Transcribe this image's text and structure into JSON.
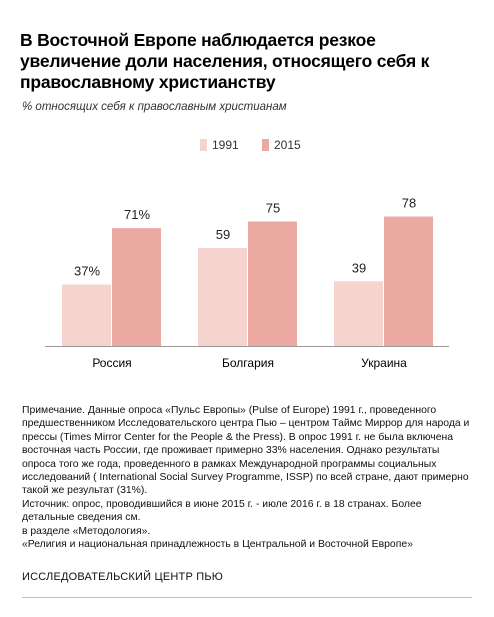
{
  "header": {
    "title": "В Восточной Европе наблюдается резкое увеличение доли населения, относящего себя к православному христианству",
    "subtitle": "% относящих себя к православным христианам"
  },
  "legend": [
    {
      "label": "1991",
      "color": "#f5d4cf"
    },
    {
      "label": "2015",
      "color": "#eba9a2"
    }
  ],
  "chart_data": {
    "type": "bar",
    "categories": [
      "Россия",
      "Болгария",
      "Украина"
    ],
    "series": [
      {
        "name": "1991",
        "values": [
          37,
          59,
          39
        ],
        "labels": [
          "37%",
          "59",
          "39"
        ],
        "color": "#f5d4cf"
      },
      {
        "name": "2015",
        "values": [
          71,
          75,
          78
        ],
        "labels": [
          "71%",
          "75",
          "78"
        ],
        "color": "#eba9a2"
      }
    ],
    "ylim": [
      0,
      100
    ],
    "grid": false,
    "legend_position": "top-center"
  },
  "notes": {
    "lines": [
      "Примечание. Данные опроса «Пульс Европы» (Pulse of Europe) 1991 г., проведенного предшественником Исследовательского центра Пью – центром Таймс Миррор для народа и прессы (Times Mirror Center for the People & the Press). В опрос 1991 г. не была включена восточная часть России, где проживает примерно 33% населения. Однако результаты опроса того же года, проведенного в рамках Международной программы социальных исследований ( International Social Survey Programme, ISSP) по всей стране, дают примерно такой же результат (31%).",
      "Источник: опрос, проводившийся в июне 2015 г. - июле 2016 г. в 18 странах. Более детальные сведения см.",
      "в разделе «Методология».",
      "«Религия и национальная принадлежность в Центральной и Восточной Европе»"
    ]
  },
  "footer": {
    "org": "ИССЛЕДОВАТЕЛЬСКИЙ ЦЕНТР ПЬЮ"
  }
}
